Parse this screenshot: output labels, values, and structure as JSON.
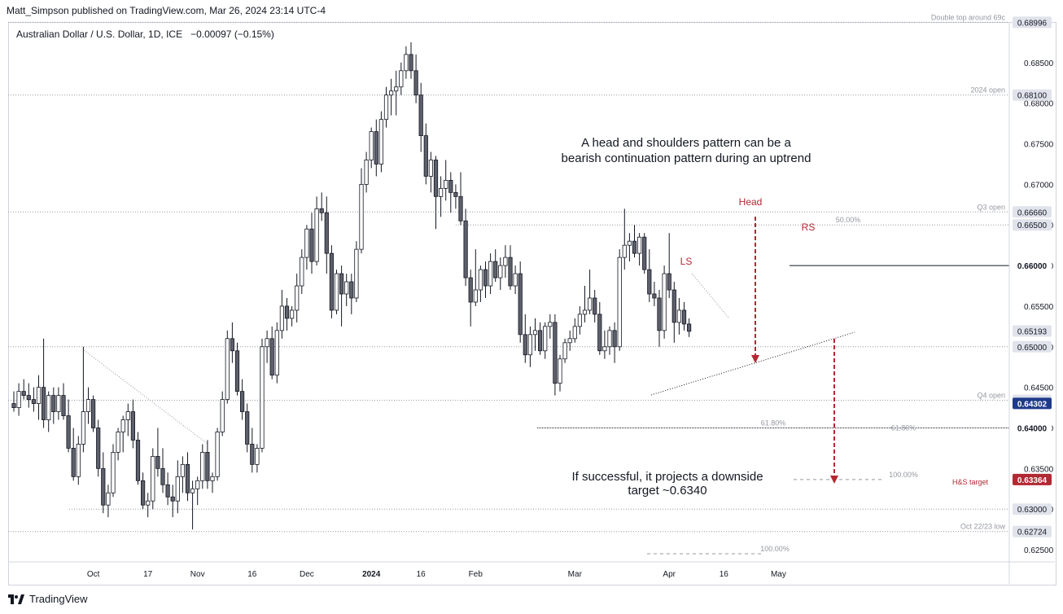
{
  "header": {
    "published": "Matt_Simpson published on TradingView.com, Mar 26, 2024 23:14 UTC-4"
  },
  "symbol": {
    "title": "Australian Dollar / U.S. Dollar, 1D, ICE",
    "change": "−0.00097 (−0.15%)"
  },
  "footer": {
    "brand": "TradingView"
  },
  "colors": {
    "up": "#ffffff",
    "down": "#5d606b",
    "annotation_red": "#b22833",
    "current_price_bg": "#1e3a8a"
  },
  "chart_data": {
    "type": "candlestick",
    "pair": "AUDUSD",
    "timeframe": "1D",
    "ylim": [
      0.6235,
      0.69
    ],
    "ticks": [
      "0.68500",
      "0.68000",
      "0.67500",
      "0.67000",
      "0.66500",
      "0.66000",
      "0.65500",
      "0.65000",
      "0.64500",
      "0.64000",
      "0.63500",
      "0.63000",
      "0.62500"
    ],
    "x_labels": [
      {
        "t": "Oct",
        "i": 16
      },
      {
        "t": "17",
        "i": 27
      },
      {
        "t": "Nov",
        "i": 37
      },
      {
        "t": "16",
        "i": 48
      },
      {
        "t": "Dec",
        "i": 59
      },
      {
        "t": "2024",
        "i": 72
      },
      {
        "t": "16",
        "i": 82
      },
      {
        "t": "Feb",
        "i": 93
      },
      {
        "t": "Mar",
        "i": 113
      },
      {
        "t": "Apr",
        "i": 132
      },
      {
        "t": "16",
        "i": 143
      },
      {
        "t": "May",
        "i": 154
      }
    ],
    "candles": [
      [
        0.643,
        0.6445,
        0.642,
        0.6425
      ],
      [
        0.6425,
        0.6455,
        0.6415,
        0.6445
      ],
      [
        0.6445,
        0.646,
        0.6435,
        0.644
      ],
      [
        0.644,
        0.6455,
        0.6425,
        0.6435
      ],
      [
        0.6435,
        0.645,
        0.642,
        0.643
      ],
      [
        0.643,
        0.6465,
        0.641,
        0.645
      ],
      [
        0.645,
        0.651,
        0.64,
        0.641
      ],
      [
        0.641,
        0.6445,
        0.6395,
        0.644
      ],
      [
        0.644,
        0.645,
        0.6405,
        0.642
      ],
      [
        0.642,
        0.645,
        0.641,
        0.644
      ],
      [
        0.644,
        0.6455,
        0.641,
        0.6415
      ],
      [
        0.6415,
        0.6435,
        0.637,
        0.6375
      ],
      [
        0.6375,
        0.64,
        0.6335,
        0.634
      ],
      [
        0.634,
        0.639,
        0.633,
        0.638
      ],
      [
        0.638,
        0.65,
        0.637,
        0.642
      ],
      [
        0.642,
        0.645,
        0.6405,
        0.6435
      ],
      [
        0.6435,
        0.644,
        0.6395,
        0.64
      ],
      [
        0.64,
        0.641,
        0.634,
        0.635
      ],
      [
        0.635,
        0.637,
        0.6295,
        0.6305
      ],
      [
        0.6305,
        0.633,
        0.629,
        0.632
      ],
      [
        0.632,
        0.638,
        0.6315,
        0.637
      ],
      [
        0.637,
        0.64,
        0.636,
        0.6395
      ],
      [
        0.6395,
        0.6415,
        0.637,
        0.641
      ],
      [
        0.641,
        0.643,
        0.639,
        0.642
      ],
      [
        0.642,
        0.6435,
        0.6375,
        0.6385
      ],
      [
        0.6385,
        0.6395,
        0.633,
        0.6335
      ],
      [
        0.6335,
        0.6345,
        0.63,
        0.6305
      ],
      [
        0.6305,
        0.632,
        0.629,
        0.631
      ],
      [
        0.631,
        0.6375,
        0.63,
        0.6365
      ],
      [
        0.6365,
        0.64,
        0.634,
        0.635
      ],
      [
        0.635,
        0.6375,
        0.632,
        0.633
      ],
      [
        0.633,
        0.6345,
        0.6305,
        0.6315
      ],
      [
        0.6315,
        0.633,
        0.629,
        0.631
      ],
      [
        0.631,
        0.636,
        0.6295,
        0.634
      ],
      [
        0.634,
        0.6365,
        0.632,
        0.6355
      ],
      [
        0.6355,
        0.637,
        0.631,
        0.632
      ],
      [
        0.632,
        0.6335,
        0.6275,
        0.6325
      ],
      [
        0.6325,
        0.634,
        0.6305,
        0.6335
      ],
      [
        0.6335,
        0.638,
        0.6325,
        0.637
      ],
      [
        0.637,
        0.6385,
        0.6325,
        0.6335
      ],
      [
        0.6335,
        0.6345,
        0.632,
        0.634
      ],
      [
        0.634,
        0.64,
        0.6335,
        0.6395
      ],
      [
        0.6395,
        0.6445,
        0.639,
        0.6435
      ],
      [
        0.6435,
        0.652,
        0.643,
        0.651
      ],
      [
        0.651,
        0.653,
        0.648,
        0.6495
      ],
      [
        0.6495,
        0.6505,
        0.644,
        0.6445
      ],
      [
        0.6445,
        0.646,
        0.641,
        0.642
      ],
      [
        0.642,
        0.643,
        0.637,
        0.638
      ],
      [
        0.638,
        0.64,
        0.6345,
        0.6355
      ],
      [
        0.6355,
        0.638,
        0.6345,
        0.6375
      ],
      [
        0.6375,
        0.651,
        0.637,
        0.65
      ],
      [
        0.65,
        0.652,
        0.648,
        0.651
      ],
      [
        0.651,
        0.6525,
        0.646,
        0.6465
      ],
      [
        0.6465,
        0.653,
        0.6455,
        0.652
      ],
      [
        0.652,
        0.657,
        0.651,
        0.655
      ],
      [
        0.655,
        0.656,
        0.652,
        0.6535
      ],
      [
        0.6535,
        0.655,
        0.6525,
        0.6545
      ],
      [
        0.6545,
        0.659,
        0.653,
        0.6575
      ],
      [
        0.6575,
        0.662,
        0.6565,
        0.661
      ],
      [
        0.661,
        0.665,
        0.6595,
        0.6645
      ],
      [
        0.6645,
        0.6665,
        0.659,
        0.6605
      ],
      [
        0.6605,
        0.6685,
        0.66,
        0.667
      ],
      [
        0.667,
        0.669,
        0.6655,
        0.6665
      ],
      [
        0.6665,
        0.6685,
        0.659,
        0.6615
      ],
      [
        0.6615,
        0.6625,
        0.6535,
        0.6545
      ],
      [
        0.6545,
        0.6595,
        0.654,
        0.659
      ],
      [
        0.659,
        0.66,
        0.6525,
        0.6565
      ],
      [
        0.6565,
        0.659,
        0.655,
        0.658
      ],
      [
        0.658,
        0.659,
        0.654,
        0.656
      ],
      [
        0.656,
        0.663,
        0.6555,
        0.662
      ],
      [
        0.662,
        0.672,
        0.6615,
        0.67
      ],
      [
        0.67,
        0.674,
        0.669,
        0.673
      ],
      [
        0.673,
        0.677,
        0.672,
        0.6765
      ],
      [
        0.6765,
        0.678,
        0.671,
        0.6725
      ],
      [
        0.6725,
        0.679,
        0.6715,
        0.678
      ],
      [
        0.678,
        0.682,
        0.677,
        0.681
      ],
      [
        0.681,
        0.683,
        0.6785,
        0.6815
      ],
      [
        0.6815,
        0.684,
        0.6785,
        0.682
      ],
      [
        0.682,
        0.685,
        0.681,
        0.684
      ],
      [
        0.684,
        0.687,
        0.683,
        0.686
      ],
      [
        0.686,
        0.6875,
        0.683,
        0.684
      ],
      [
        0.684,
        0.686,
        0.68,
        0.681
      ],
      [
        0.681,
        0.6825,
        0.674,
        0.676
      ],
      [
        0.676,
        0.6775,
        0.67,
        0.671
      ],
      [
        0.671,
        0.674,
        0.669,
        0.673
      ],
      [
        0.673,
        0.6735,
        0.6645,
        0.6685
      ],
      [
        0.6685,
        0.671,
        0.666,
        0.6695
      ],
      [
        0.6695,
        0.673,
        0.668,
        0.6705
      ],
      [
        0.6705,
        0.6715,
        0.6665,
        0.669
      ],
      [
        0.669,
        0.67,
        0.667,
        0.6685
      ],
      [
        0.6685,
        0.6715,
        0.665,
        0.6655
      ],
      [
        0.6655,
        0.667,
        0.6575,
        0.6585
      ],
      [
        0.6585,
        0.6595,
        0.6525,
        0.6555
      ],
      [
        0.6555,
        0.662,
        0.655,
        0.657
      ],
      [
        0.657,
        0.66,
        0.6555,
        0.6595
      ],
      [
        0.6595,
        0.6605,
        0.656,
        0.6575
      ],
      [
        0.6575,
        0.6615,
        0.6565,
        0.6605
      ],
      [
        0.6605,
        0.662,
        0.658,
        0.6585
      ],
      [
        0.6585,
        0.661,
        0.657,
        0.66
      ],
      [
        0.66,
        0.6625,
        0.6585,
        0.661
      ],
      [
        0.661,
        0.6625,
        0.657,
        0.6575
      ],
      [
        0.6575,
        0.66,
        0.6565,
        0.659
      ],
      [
        0.659,
        0.6605,
        0.6505,
        0.6515
      ],
      [
        0.6515,
        0.654,
        0.648,
        0.649
      ],
      [
        0.649,
        0.6525,
        0.6475,
        0.6515
      ],
      [
        0.6515,
        0.6535,
        0.6495,
        0.652
      ],
      [
        0.652,
        0.653,
        0.649,
        0.6495
      ],
      [
        0.6495,
        0.653,
        0.6485,
        0.6525
      ],
      [
        0.6525,
        0.654,
        0.651,
        0.653
      ],
      [
        0.653,
        0.654,
        0.644,
        0.6455
      ],
      [
        0.6455,
        0.649,
        0.6445,
        0.6485
      ],
      [
        0.6485,
        0.651,
        0.648,
        0.6505
      ],
      [
        0.6505,
        0.652,
        0.6495,
        0.651
      ],
      [
        0.651,
        0.6535,
        0.6505,
        0.6525
      ],
      [
        0.6525,
        0.655,
        0.6515,
        0.654
      ],
      [
        0.654,
        0.6575,
        0.653,
        0.6545
      ],
      [
        0.6545,
        0.6595,
        0.654,
        0.656
      ],
      [
        0.656,
        0.657,
        0.653,
        0.654
      ],
      [
        0.654,
        0.6555,
        0.649,
        0.6495
      ],
      [
        0.6495,
        0.652,
        0.6485,
        0.65
      ],
      [
        0.65,
        0.6525,
        0.649,
        0.652
      ],
      [
        0.652,
        0.653,
        0.648,
        0.65
      ],
      [
        0.65,
        0.662,
        0.6495,
        0.661
      ],
      [
        0.661,
        0.667,
        0.6595,
        0.6625
      ],
      [
        0.6625,
        0.664,
        0.6605,
        0.663
      ],
      [
        0.663,
        0.665,
        0.661,
        0.6615
      ],
      [
        0.6615,
        0.664,
        0.66,
        0.6635
      ],
      [
        0.6635,
        0.664,
        0.659,
        0.6595
      ],
      [
        0.6595,
        0.662,
        0.6555,
        0.6565
      ],
      [
        0.6565,
        0.658,
        0.655,
        0.656
      ],
      [
        0.656,
        0.657,
        0.65,
        0.652
      ],
      [
        0.652,
        0.66,
        0.651,
        0.659
      ],
      [
        0.659,
        0.664,
        0.656,
        0.657
      ],
      [
        0.657,
        0.658,
        0.6505,
        0.653
      ],
      [
        0.653,
        0.656,
        0.6515,
        0.6545
      ],
      [
        0.6545,
        0.6555,
        0.652,
        0.6528
      ],
      [
        0.6528,
        0.6535,
        0.6512,
        0.6519
      ]
    ],
    "horizontal_levels": [
      {
        "label": "Double top around 69c",
        "price": 0.68996,
        "price_label": "0.68996"
      },
      {
        "label": "2024 open",
        "price": 0.681,
        "price_label": "0.68100"
      },
      {
        "label": "Q3 open",
        "price": 0.6666,
        "price_label": "0.66660"
      },
      {
        "label": "50.00%",
        "price": 0.665,
        "price_label": "0.66500"
      },
      {
        "label": "",
        "price": 0.66,
        "price_label": "0.66000"
      },
      {
        "label": "",
        "price": 0.65,
        "price_label": "0.65000"
      },
      {
        "label": "Q4 open",
        "price": 0.6434,
        "price_label": "0.64340"
      },
      {
        "label": "61.80%",
        "price": 0.64,
        "price_label": "0.64000"
      },
      {
        "label": "100.00%",
        "price": 0.63364,
        "price_label": "0.63364"
      },
      {
        "label": "",
        "price": 0.63,
        "price_label": "0.63000"
      },
      {
        "label": "Oct 22/23 low",
        "price": 0.62724,
        "price_label": "0.62724"
      },
      {
        "label": "100.00%",
        "price": 0.6245,
        "price_label": ""
      }
    ],
    "price_tags": [
      {
        "price": 0.65193,
        "text": "0.65193",
        "style": "last"
      },
      {
        "price": 0.64302,
        "text": "0.64302",
        "style": "current"
      },
      {
        "price": 0.63364,
        "text": "0.63364",
        "style": "target"
      }
    ],
    "annotations": {
      "head": "Head",
      "ls": "LS",
      "rs": "RS",
      "hs_target": "H&S target",
      "note1": [
        "A head and shoulders pattern can be a",
        "bearish continuation pattern during an uptrend"
      ],
      "note2": [
        "If successful, it projects a downside",
        "target ~0.6340"
      ],
      "retrace_618": "61.80%"
    }
  }
}
